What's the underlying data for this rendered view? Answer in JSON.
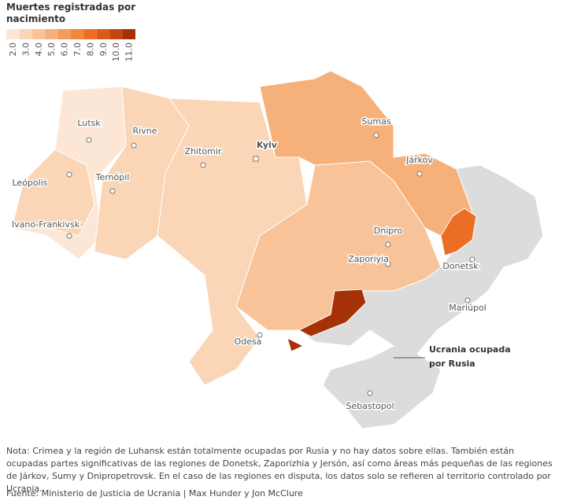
{
  "legend": {
    "title": [
      "Muertes registradas por",
      "nacimiento"
    ],
    "items": [
      {
        "label": "2.0",
        "color": "#fce7d6"
      },
      {
        "label": "3.0",
        "color": "#fad5b6"
      },
      {
        "label": "4.0",
        "color": "#f8c398"
      },
      {
        "label": "5.0",
        "color": "#f6b07a"
      },
      {
        "label": "6.0",
        "color": "#f49b5a"
      },
      {
        "label": "7.0",
        "color": "#f1873d"
      },
      {
        "label": "8.0",
        "color": "#ea6f24"
      },
      {
        "label": "9.0",
        "color": "#dc5a17"
      },
      {
        "label": "10.0",
        "color": "#c44510"
      },
      {
        "label": "11.0",
        "color": "#a53107"
      }
    ]
  },
  "cities": [
    "Lutsk",
    "Rivne",
    "Zhitomir",
    "Kyiv",
    "Sumas",
    "Járkov",
    "Leópolis",
    "Ternópil",
    "Ivano-Frankivsk",
    "Dnipro",
    "Zaporiyia",
    "Donetsk",
    "Mariúpol",
    "Odesa",
    "Sebastopol"
  ],
  "annotation": [
    "Ucrania ocupada",
    "por Rusia"
  ],
  "note": "Nota: Crimea y la región de Luhansk están totalmente ocupadas por Rusia y no hay datos sobre ellas. También están ocupadas partes significativas de las regiones de Donetsk, Zaporizhia y Jersón, así como áreas más pequeñas de las regiones de Járkov, Sumy y Dnipropetrovsk. En el caso de las regiones en disputa, los datos solo se refieren al territorio controlado por Ucrania.",
  "source": "Fuente: Ministerio de Justicia de Ucrania  | Max Hunder y Jon McClure"
}
